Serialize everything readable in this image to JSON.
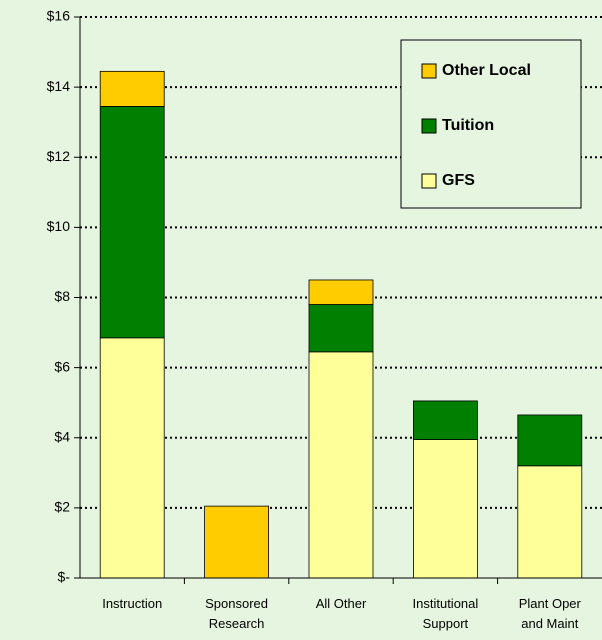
{
  "chart_data": {
    "type": "stacked_bar",
    "categories": [
      "Instruction",
      "Sponsored\nResearch",
      "All Other",
      "Institutional\nSupport",
      "Plant Oper\nand Maint"
    ],
    "series": [
      {
        "name": "GFS",
        "color": "#ffff99",
        "values": [
          6.85,
          0,
          6.45,
          3.95,
          3.2
        ]
      },
      {
        "name": "Tuition",
        "color": "#007f00",
        "values": [
          6.6,
          0,
          1.35,
          1.1,
          1.45
        ]
      },
      {
        "name": "Other Local",
        "color": "#ffcc00",
        "values": [
          1.0,
          2.05,
          0.7,
          0,
          0
        ]
      }
    ],
    "ylim": [
      0,
      16
    ],
    "yticks": [
      {
        "value": 0,
        "label": "$-"
      },
      {
        "value": 2,
        "label": "$2"
      },
      {
        "value": 4,
        "label": "$4"
      },
      {
        "value": 6,
        "label": "$6"
      },
      {
        "value": 8,
        "label": "$8"
      },
      {
        "value": 10,
        "label": "$10"
      },
      {
        "value": 12,
        "label": "$12"
      },
      {
        "value": 14,
        "label": "$14"
      },
      {
        "value": 16,
        "label": "$16"
      }
    ],
    "grid": true,
    "legend": "upper right"
  }
}
